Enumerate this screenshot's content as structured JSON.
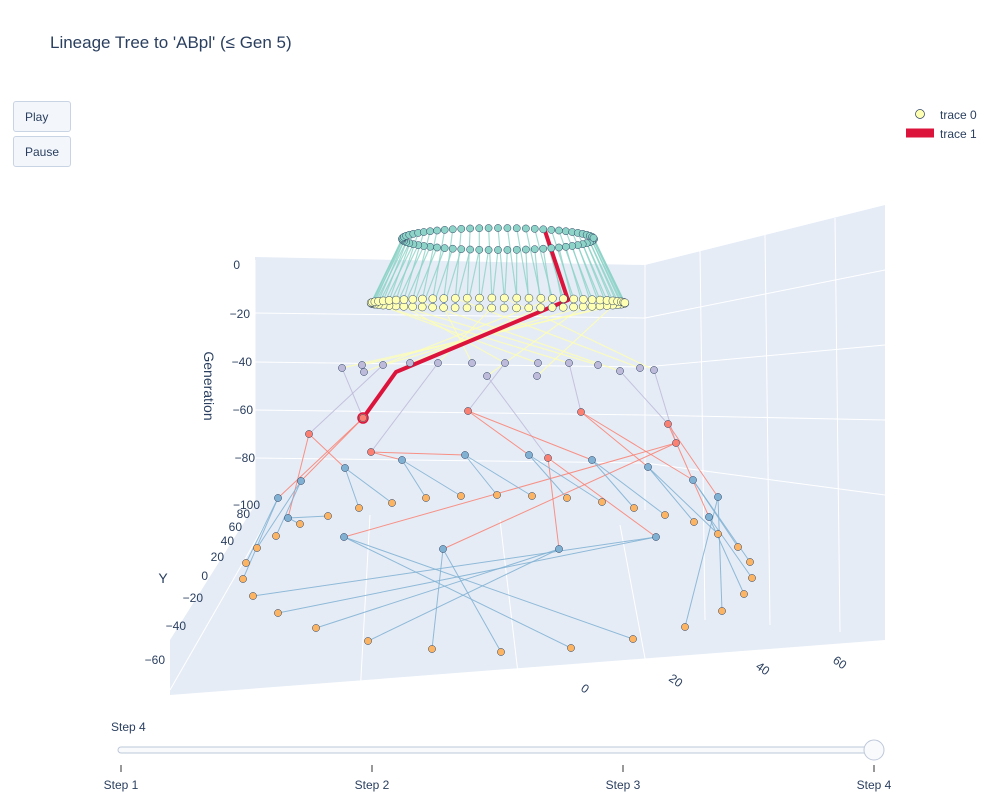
{
  "controls": {
    "play_label": "Play",
    "pause_label": "Pause"
  },
  "slider": {
    "current_label": "Step 4",
    "steps": [
      "Step 1",
      "Step 2",
      "Step 3",
      "Step 4"
    ],
    "active_index": 3
  },
  "legend": [
    {
      "name": "trace 0",
      "symbol": "circle",
      "color": "#ffffb3"
    },
    {
      "name": "trace 1",
      "symbol": "line",
      "color": "#dc143c"
    }
  ],
  "colors": {
    "scene_bg": "#e5ecf6",
    "grid": "#ffffff",
    "gen1": "#8dd3c7",
    "gen2": "#ffffb3",
    "gen3": "#bebada",
    "gen4": "#fb8072",
    "gen5": "#80b1d3",
    "gen6": "#fdb462",
    "path": "#dc143c",
    "marker_outline": "#2a3f5f"
  },
  "chart_data": {
    "type": "scatter3d",
    "title": "Lineage Tree to 'ABpl' (≤ Gen 5)",
    "zlabel": "Generation",
    "ylabel": "Y",
    "xlabel": "",
    "z_ticks": [
      "0",
      "−20",
      "−40",
      "−60",
      "−80",
      "−100"
    ],
    "y_ticks": [
      "80",
      "60",
      "40",
      "20",
      "0",
      "−20",
      "−40",
      "−60"
    ],
    "x_ticks": [
      "0",
      "20",
      "40",
      "60"
    ],
    "generation_levels": [
      {
        "generation": 0,
        "z": 0,
        "node_count": 64
      },
      {
        "generation": 1,
        "z": -20,
        "node_count": 64
      },
      {
        "generation": 2,
        "z": -40,
        "node_count": 16
      },
      {
        "generation": 3,
        "z": -60,
        "node_count": 8
      },
      {
        "generation": 4,
        "z": -80,
        "node_count": 16
      },
      {
        "generation": 5,
        "z": -100,
        "node_count": 32
      }
    ],
    "highlight_path": {
      "name": "trace 1",
      "levels": [
        0,
        -20,
        -40,
        -60
      ]
    }
  }
}
